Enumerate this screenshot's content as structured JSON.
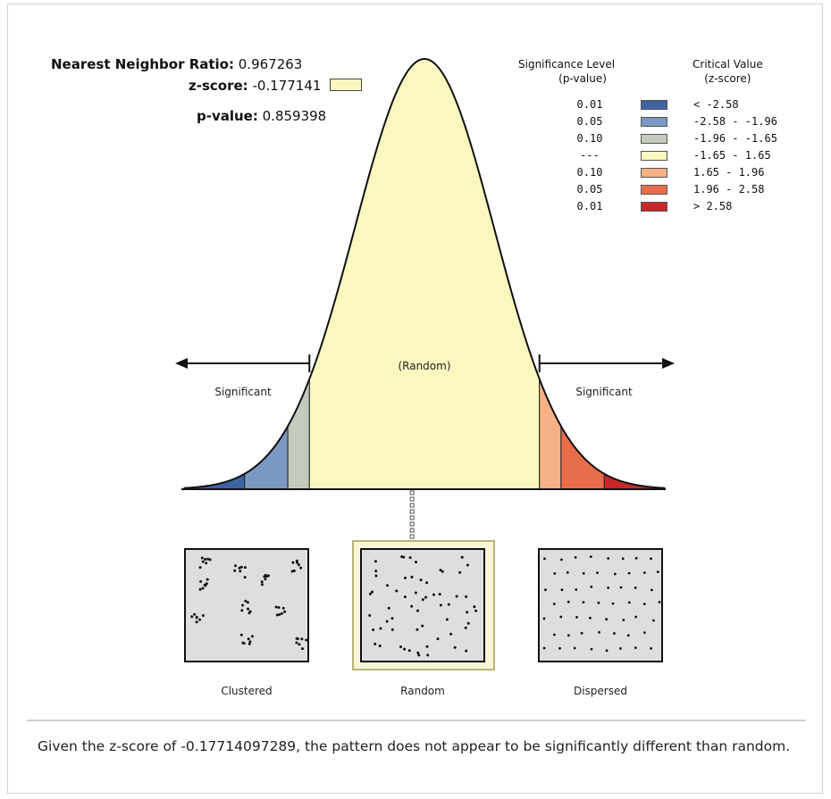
{
  "stats": {
    "ratio_label": "Nearest Neighbor Ratio:",
    "ratio_value": "0.967263",
    "z_label": "z-score:",
    "z_value": "-0.177141",
    "p_label": "p-value:",
    "p_value": "0.859398"
  },
  "legend": {
    "sig_header_1": "Significance Level",
    "sig_header_2": "(p-value)",
    "crit_header_1": "Critical Value",
    "crit_header_2": "(z-score)",
    "rows": [
      {
        "p": "0.01",
        "z": "< -2.58",
        "color": "#3d63a3"
      },
      {
        "p": "0.05",
        "z": "-2.58 - -1.96",
        "color": "#7a98c2"
      },
      {
        "p": "0.10",
        "z": "-1.96 - -1.65",
        "color": "#c2cbbd"
      },
      {
        "p": "---",
        "z": "-1.65 - 1.65",
        "color": "#fbf8bf"
      },
      {
        "p": "0.10",
        "z": "1.65 - 1.96",
        "color": "#f6b184"
      },
      {
        "p": "0.05",
        "z": "1.96 - 2.58",
        "color": "#ea6d4b"
      },
      {
        "p": "0.01",
        "z": "> 2.58",
        "color": "#c8282a"
      }
    ]
  },
  "curve": {
    "random_label": "(Random)",
    "significant_left": "Significant",
    "significant_right": "Significant",
    "z_marker": -0.177141
  },
  "patterns": {
    "clustered": "Clustered",
    "random": "Random",
    "dispersed": "Dispersed",
    "highlighted": "random"
  },
  "footer": {
    "text": "Given the z-score of -0.17714097289, the pattern does not appear to be significantly different than random."
  }
}
